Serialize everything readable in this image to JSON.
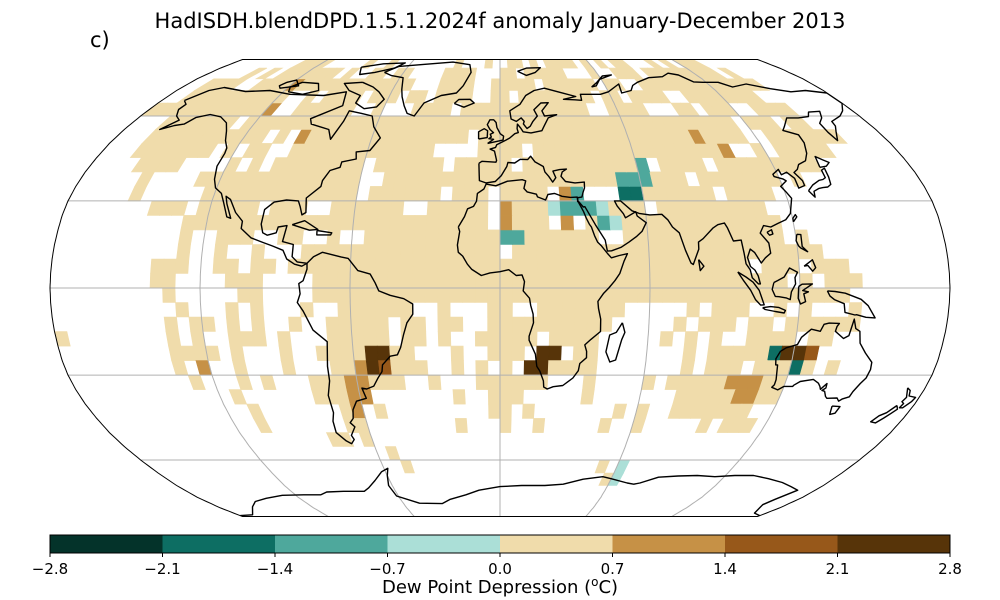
{
  "title": "HadISDH.blendDPD.1.5.1.2024f anomaly January-December 2013",
  "panel_label": "c)",
  "colorbar": {
    "label_prefix": "Dew Point Depression (",
    "label_sup": "o",
    "label_suffix": "C)",
    "ticks": [
      "−2.8",
      "−2.1",
      "−1.4",
      "−0.7",
      "0.0",
      "0.7",
      "1.4",
      "2.1",
      "2.8"
    ],
    "bin_colors": [
      "#04332a",
      "#0d6e63",
      "#4ea89c",
      "#abdfd7",
      "#f0dcab",
      "#c69146",
      "#97581a",
      "#573409"
    ]
  },
  "map": {
    "projection": "Robinson",
    "gridlines": true,
    "coastlines": true,
    "colors": {
      "-3": "#0d6e63",
      "-2": "#4ea89c",
      "-1": "#abdfd7",
      "1": "#f0dcab",
      "2": "#c69146",
      "3": "#97581a",
      "4": "#573409"
    }
  }
}
